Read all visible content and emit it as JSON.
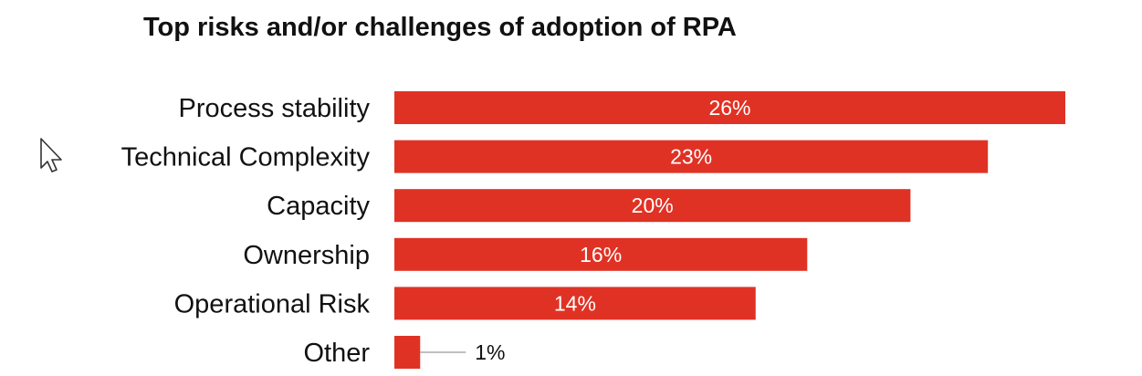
{
  "chart_data": {
    "type": "bar",
    "orientation": "horizontal",
    "title": "Top risks and/or challenges of adoption of RPA",
    "categories": [
      "Process stability",
      "Technical Complexity",
      "Capacity",
      "Ownership",
      "Operational Risk",
      "Other"
    ],
    "values": [
      26,
      23,
      20,
      16,
      14,
      1
    ],
    "value_labels": [
      "26%",
      "23%",
      "20%",
      "16%",
      "14%",
      "1%"
    ],
    "unit": "%",
    "xlim": [
      0,
      26
    ],
    "grid": false,
    "legend": "none",
    "bar_color": "#e03224"
  },
  "cursor": {
    "icon": "mouse-pointer-icon"
  }
}
